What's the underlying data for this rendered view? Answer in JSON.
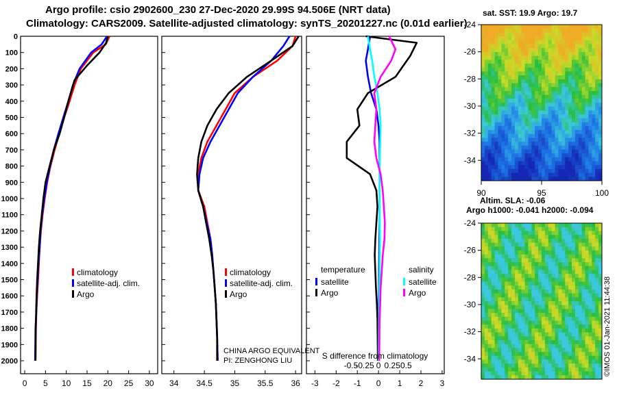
{
  "header": {
    "line1": "Argo profile: csio 2902600_230 27-Dec-2020 29.99S 94.506E (NRT data)",
    "line2": "Climatology: CARS2009. Satellite-adjusted climatology: synTS_20201227.nc (0.01d earlier)"
  },
  "colors": {
    "argo": "#000000",
    "clim": "#ff0000",
    "sat": "#0000ff",
    "sat_s": "#00ffff",
    "argo_s": "#ff00ff"
  },
  "side_texts": {
    "sst_title": "sat. SST: 19.9 Argo: 19.7",
    "sla_title1": "Altim. SLA: -0.06",
    "sla_title2": "Argo h1000: -0.041 h2000: -0.094",
    "credit": "©IMOS 01-Jan-2021 11:44:38",
    "float_note1": "CHINA ARGO EQUIVALENT",
    "float_note2": "PI: ZENGHONG LIU",
    "diff_xlabel": "S difference from climatology"
  },
  "legends": {
    "temp": [
      "climatology",
      "satellite-adj. clim.",
      "Argo"
    ],
    "sal": [
      "climatology",
      "satellite-adj. clim.",
      "Argo"
    ],
    "diff_head_t": "temperature",
    "diff_head_s": "salinity",
    "diff_t": [
      "satellite",
      "Argo"
    ],
    "diff_s": [
      "satellite",
      "Argo"
    ]
  },
  "chart_data": [
    {
      "type": "line",
      "panel": "temperature",
      "xlim": [
        -1,
        32
      ],
      "ylim": [
        2080,
        0
      ],
      "xticks": [
        0,
        5,
        10,
        15,
        20,
        25,
        30
      ],
      "yticks": [
        0,
        100,
        200,
        300,
        400,
        500,
        600,
        700,
        800,
        900,
        1000,
        1100,
        1200,
        1300,
        1400,
        1500,
        1600,
        1700,
        1800,
        1900,
        2000
      ],
      "series": [
        {
          "name": "climatology",
          "color": "clim",
          "x": [
            20.4,
            19.5,
            16.5,
            13.5,
            12.0,
            10.8,
            9.5,
            8.3,
            7.2,
            6.2,
            5.4,
            4.8,
            4.3,
            3.9,
            3.6,
            3.4,
            3.2,
            3.0,
            2.8,
            2.7,
            2.6
          ],
          "y": [
            0,
            50,
            100,
            200,
            300,
            400,
            500,
            600,
            700,
            800,
            900,
            1000,
            1100,
            1200,
            1300,
            1400,
            1500,
            1600,
            1700,
            1800,
            2000
          ]
        },
        {
          "name": "satellite-adj. clim.",
          "color": "sat",
          "x": [
            19.8,
            18.5,
            16.0,
            13.2,
            11.6,
            10.5,
            9.3,
            8.1,
            7.0,
            6.1,
            5.3,
            4.7,
            4.2,
            3.8,
            3.6,
            3.3,
            3.1,
            2.9,
            2.8,
            2.6,
            2.5
          ],
          "y": [
            0,
            50,
            100,
            200,
            300,
            400,
            500,
            600,
            700,
            800,
            900,
            1000,
            1100,
            1200,
            1300,
            1400,
            1500,
            1600,
            1700,
            1800,
            2000
          ]
        },
        {
          "name": "Argo",
          "color": "argo",
          "x": [
            20.0,
            19.6,
            18.0,
            15.0,
            12.0,
            10.5,
            9.5,
            8.4,
            7.0,
            6.0,
            5.0,
            4.5,
            4.1,
            3.7,
            3.4,
            3.2,
            3.0,
            2.85,
            2.75,
            2.65,
            2.6
          ],
          "y": [
            0,
            40,
            100,
            180,
            270,
            400,
            500,
            600,
            700,
            800,
            900,
            1000,
            1100,
            1200,
            1300,
            1400,
            1500,
            1600,
            1700,
            1800,
            2000
          ]
        }
      ]
    },
    {
      "type": "line",
      "panel": "salinity",
      "xlim": [
        33.8,
        36.1
      ],
      "ylim": [
        2080,
        0
      ],
      "xticks": [
        34,
        34.5,
        35,
        35.5,
        36
      ],
      "xticklabels": [
        "34",
        "34.5",
        "35",
        "35.5",
        "36"
      ],
      "series": [
        {
          "name": "climatology",
          "color": "clim",
          "x": [
            36.0,
            35.95,
            35.7,
            35.3,
            35.0,
            34.85,
            34.7,
            34.55,
            34.45,
            34.4,
            34.4,
            34.5,
            34.55,
            34.6,
            34.63,
            34.65,
            34.67,
            34.69,
            34.7,
            34.71,
            34.72
          ],
          "y": [
            0,
            60,
            150,
            250,
            350,
            450,
            550,
            650,
            750,
            850,
            950,
            1050,
            1150,
            1250,
            1350,
            1450,
            1550,
            1650,
            1750,
            1850,
            2000
          ]
        },
        {
          "name": "satellite-adj. clim.",
          "color": "sat",
          "x": [
            35.9,
            35.8,
            35.6,
            35.3,
            35.05,
            34.9,
            34.75,
            34.6,
            34.48,
            34.42,
            34.4,
            34.48,
            34.54,
            34.6,
            34.63,
            34.65,
            34.67,
            34.69,
            34.7,
            34.71,
            34.72
          ],
          "y": [
            0,
            60,
            150,
            250,
            350,
            450,
            550,
            650,
            750,
            850,
            950,
            1050,
            1150,
            1250,
            1350,
            1450,
            1550,
            1650,
            1750,
            1850,
            2000
          ]
        },
        {
          "name": "Argo",
          "color": "argo",
          "x": [
            36.05,
            35.95,
            35.6,
            35.2,
            34.9,
            34.7,
            34.55,
            34.45,
            34.4,
            34.38,
            34.4,
            34.48,
            34.53,
            34.58,
            34.62,
            34.65,
            34.67,
            34.69,
            34.7,
            34.71,
            34.71
          ],
          "y": [
            0,
            60,
            150,
            250,
            350,
            450,
            550,
            650,
            750,
            850,
            950,
            1050,
            1150,
            1250,
            1350,
            1450,
            1550,
            1650,
            1750,
            1850,
            2000
          ]
        }
      ]
    },
    {
      "type": "line",
      "panel": "difference",
      "xlim": [
        -3.4,
        3.1
      ],
      "ylim": [
        2080,
        0
      ],
      "xticks": [
        -3,
        -2,
        -1,
        0,
        1,
        2,
        3
      ],
      "xticklabels": [
        "-3",
        "-2",
        "-1",
        "0",
        "1",
        "2",
        "3"
      ],
      "s_ticks": [
        -0.5,
        -0.25,
        0,
        0.25,
        0.5
      ],
      "s_ticklabels": [
        "-0.5",
        "-0.25",
        "0",
        "0.25",
        "0.5"
      ],
      "s_scale": 1,
      "series": [
        {
          "name": "T satellite",
          "color": "sat",
          "x": [
            -0.4,
            -0.5,
            -0.6,
            -0.5,
            -0.35,
            -0.1,
            0.0,
            0.05,
            0.05,
            0.05,
            0.05,
            0.05,
            0.05,
            0.04,
            0.03,
            0.02,
            0.02,
            0.01,
            0.01,
            0.0
          ],
          "y": [
            0,
            80,
            150,
            250,
            350,
            450,
            550,
            650,
            750,
            850,
            950,
            1050,
            1150,
            1250,
            1350,
            1450,
            1550,
            1650,
            1750,
            2000
          ]
        },
        {
          "name": "T Argo",
          "color": "argo",
          "x": [
            -0.6,
            1.8,
            1.5,
            0.8,
            -0.5,
            -1.0,
            -0.9,
            -1.5,
            -1.5,
            -0.4,
            -0.1,
            -0.05,
            -0.1,
            -0.15,
            -0.18,
            -0.15,
            -0.12,
            -0.08,
            -0.05,
            -0.03
          ],
          "y": [
            0,
            40,
            120,
            250,
            350,
            450,
            550,
            650,
            750,
            850,
            950,
            1050,
            1150,
            1250,
            1350,
            1450,
            1550,
            1650,
            1750,
            2000
          ]
        },
        {
          "name": "S satellite",
          "color": "sat_s",
          "x": [
            -0.5,
            -0.4,
            -0.3,
            -0.2,
            -0.05,
            0.05,
            0.1,
            0.08,
            0.06,
            0.05,
            0.05,
            0.05,
            0.06,
            0.07,
            0.06,
            0.05,
            0.04,
            0.03,
            0.02,
            0.01
          ],
          "y": [
            0,
            80,
            150,
            250,
            350,
            450,
            550,
            650,
            750,
            850,
            950,
            1050,
            1150,
            1250,
            1350,
            1450,
            1550,
            1650,
            1750,
            2000
          ]
        },
        {
          "name": "S Argo",
          "color": "argo_s",
          "x": [
            0.5,
            0.8,
            0.6,
            0.1,
            -0.2,
            -0.1,
            -0.15,
            -0.2,
            -0.1,
            0.1,
            0.2,
            0.25,
            0.3,
            0.28,
            0.2,
            0.15,
            0.1,
            0.08,
            0.05,
            0.03
          ],
          "y": [
            0,
            80,
            150,
            250,
            350,
            450,
            550,
            650,
            750,
            850,
            950,
            1050,
            1150,
            1250,
            1350,
            1450,
            1550,
            1650,
            1750,
            2000
          ]
        }
      ]
    },
    {
      "type": "heatmap",
      "panel": "sat-SST map",
      "xlim": [
        90,
        100
      ],
      "ylim": [
        -35.5,
        -24
      ],
      "xticks": [
        90,
        95,
        100
      ],
      "yticks": [
        -24,
        -26,
        -28,
        -30,
        -32,
        -34
      ]
    },
    {
      "type": "heatmap",
      "panel": "SLA map",
      "xlim": [
        90,
        100
      ],
      "ylim": [
        -35.5,
        -24
      ],
      "yticks": [
        -24,
        -26,
        -28,
        -30,
        -32,
        -34
      ]
    }
  ]
}
